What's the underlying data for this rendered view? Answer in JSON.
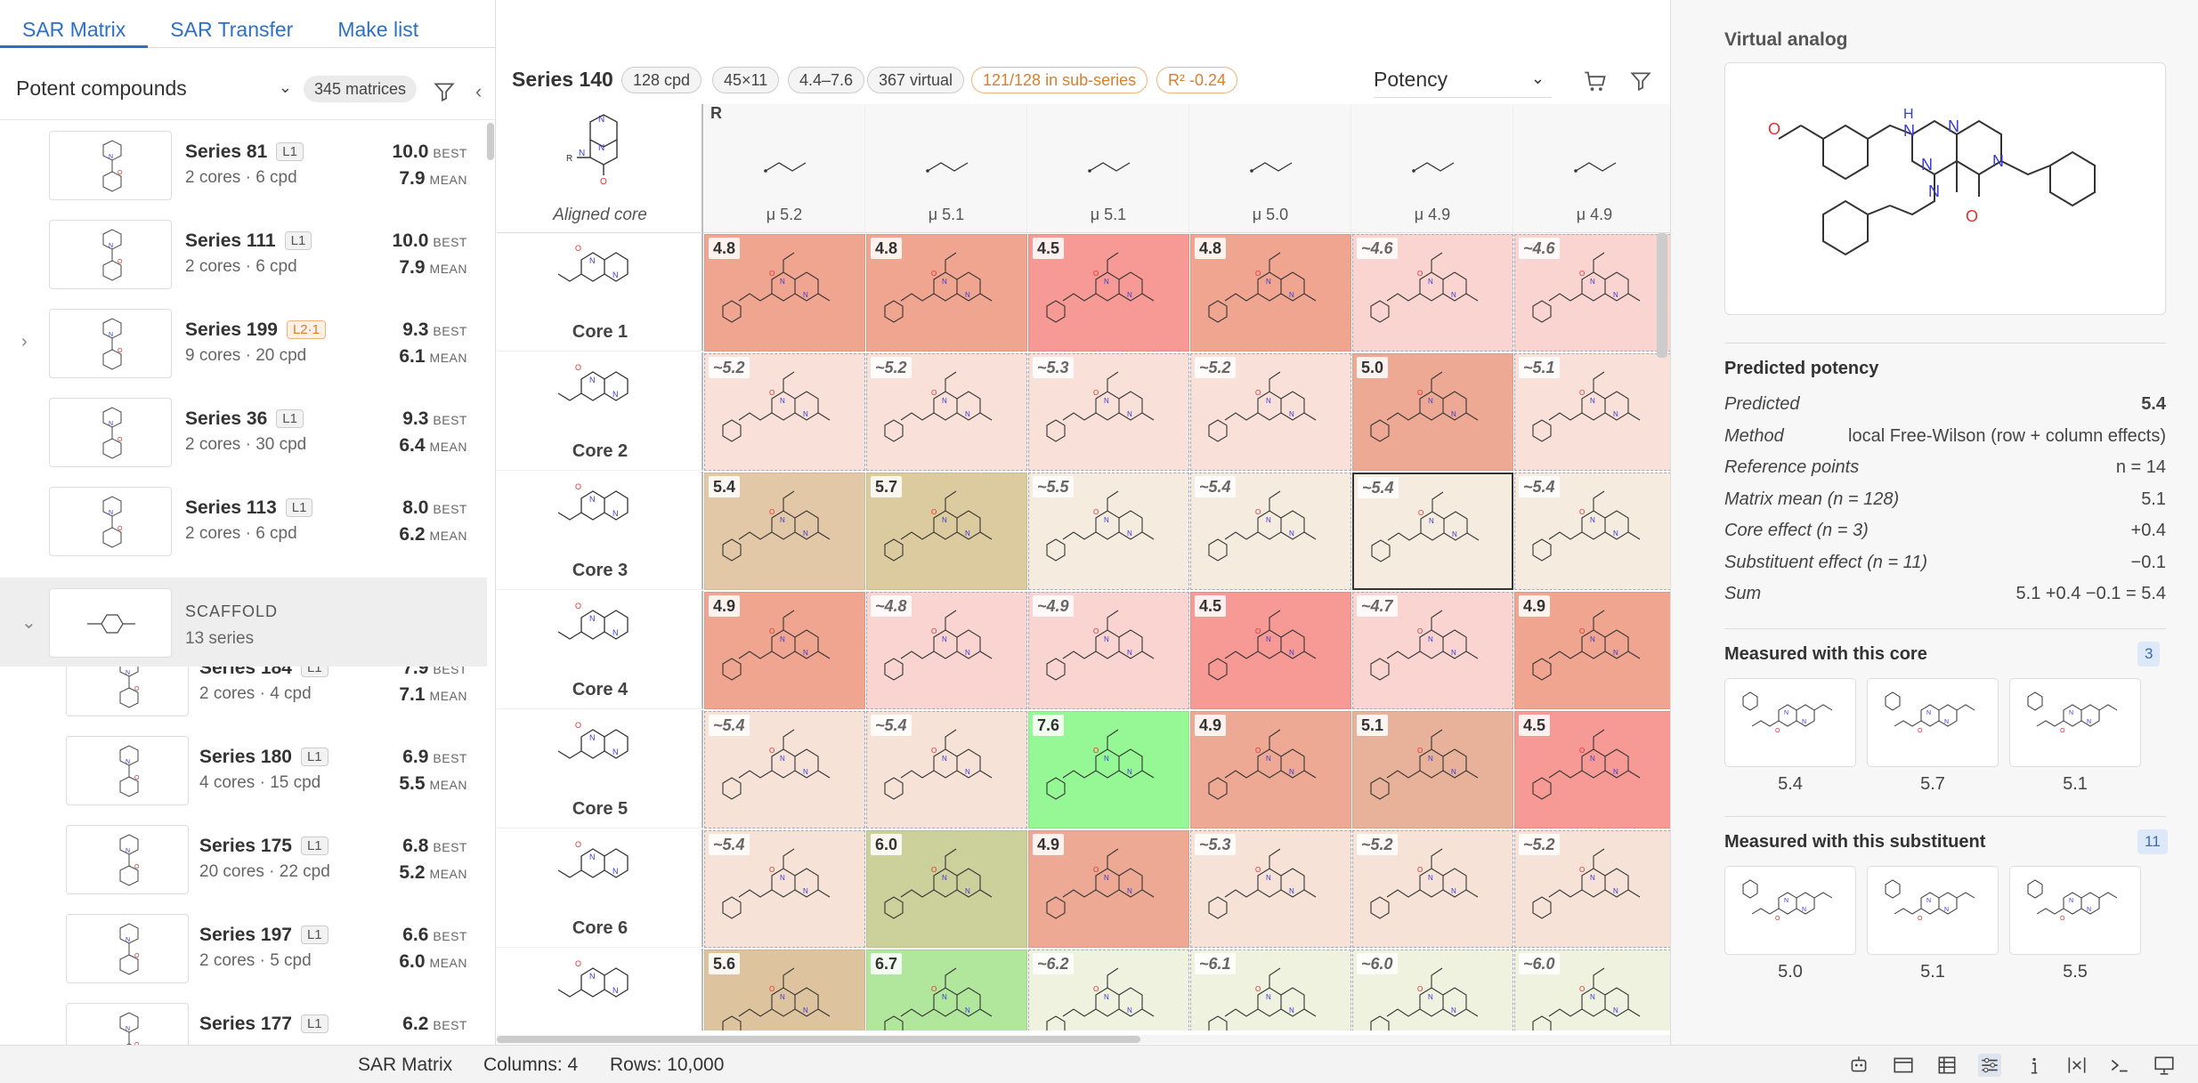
{
  "tabs": [
    {
      "label": "SAR Matrix",
      "active": true
    },
    {
      "label": "SAR Transfer",
      "active": false
    },
    {
      "label": "Make list",
      "active": false
    }
  ],
  "left": {
    "filter_select": "Potent compounds",
    "matrices_badge": "345 matrices",
    "series": [
      {
        "name": "Series 81",
        "level": "L1",
        "sub": "2 cores · 6 cpd",
        "best": "10.0",
        "mean": "7.9"
      },
      {
        "name": "Series 111",
        "level": "L1",
        "sub": "2 cores · 6 cpd",
        "best": "10.0",
        "mean": "7.9"
      },
      {
        "name": "Series 199",
        "level": "L2·1",
        "sub": "9 cores · 20 cpd",
        "best": "9.3",
        "mean": "6.1"
      },
      {
        "name": "Series 36",
        "level": "L1",
        "sub": "2 cores · 30 cpd",
        "best": "9.3",
        "mean": "6.4"
      },
      {
        "name": "Series 113",
        "level": "L1",
        "sub": "2 cores · 6 cpd",
        "best": "8.0",
        "mean": "6.2"
      },
      {
        "name": "Series 184",
        "level": "L1",
        "sub": "2 cores · 4 cpd",
        "best": "7.9",
        "mean": "7.1"
      },
      {
        "name": "Series 180",
        "level": "L1",
        "sub": "4 cores · 15 cpd",
        "best": "6.9",
        "mean": "5.5"
      },
      {
        "name": "Series 175",
        "level": "L1",
        "sub": "20 cores · 22 cpd",
        "best": "6.8",
        "mean": "5.2"
      },
      {
        "name": "Series 197",
        "level": "L1",
        "sub": "2 cores · 5 cpd",
        "best": "6.6",
        "mean": "6.0"
      },
      {
        "name": "Series 177",
        "level": "L1",
        "sub": "",
        "best": "6.2",
        "mean": ""
      }
    ],
    "best_label": "BEST",
    "mean_label": "MEAN",
    "scaffold": {
      "label": "SCAFFOLD",
      "count": "13 series"
    }
  },
  "matrix": {
    "title": "Series 140",
    "chips": [
      "128 cpd",
      "45×11",
      "4.4–7.6",
      "367 virtual"
    ],
    "chips_orange": [
      "121/128 in sub-series",
      "R² -0.24"
    ],
    "metric_select": "Potency",
    "corner_label": "Aligned core",
    "r_label": "R",
    "columns": [
      "μ 5.2",
      "μ 5.1",
      "μ 5.1",
      "μ 5.0",
      "μ 4.9",
      "μ 4.9"
    ],
    "rows": [
      "Core 1",
      "Core 2",
      "Core 3",
      "Core 4",
      "Core 5",
      "Core 6",
      ""
    ],
    "cells": [
      [
        {
          "v": "4.8",
          "m": true,
          "c": "#f0a590"
        },
        {
          "v": "4.8",
          "m": true,
          "c": "#f0a590"
        },
        {
          "v": "4.5",
          "m": true,
          "c": "#f79a95"
        },
        {
          "v": "4.8",
          "m": true,
          "c": "#f0a590"
        },
        {
          "v": "~4.6",
          "m": false,
          "c": "#f9d4d0"
        },
        {
          "v": "~4.6",
          "m": false,
          "c": "#f9d4d0"
        }
      ],
      [
        {
          "v": "~5.2",
          "m": false,
          "c": "#f9e1d9"
        },
        {
          "v": "~5.2",
          "m": false,
          "c": "#f9e1d9"
        },
        {
          "v": "~5.3",
          "m": false,
          "c": "#f9e1d9"
        },
        {
          "v": "~5.2",
          "m": false,
          "c": "#f9e1d9"
        },
        {
          "v": "5.0",
          "m": true,
          "c": "#eda994"
        },
        {
          "v": "~5.1",
          "m": false,
          "c": "#f9e1d9"
        }
      ],
      [
        {
          "v": "5.4",
          "m": true,
          "c": "#e3c8a8"
        },
        {
          "v": "5.7",
          "m": true,
          "c": "#dccb9e"
        },
        {
          "v": "~5.5",
          "m": false,
          "c": "#f6ebdf"
        },
        {
          "v": "~5.4",
          "m": false,
          "c": "#f6ebdf"
        },
        {
          "v": "~5.4",
          "m": false,
          "c": "#f6ebdf",
          "sel": true
        },
        {
          "v": "~5.4",
          "m": false,
          "c": "#f6ebdf"
        }
      ],
      [
        {
          "v": "4.9",
          "m": true,
          "c": "#f0a590"
        },
        {
          "v": "~4.8",
          "m": false,
          "c": "#f9d4d0"
        },
        {
          "v": "~4.9",
          "m": false,
          "c": "#f9d4d0"
        },
        {
          "v": "4.5",
          "m": true,
          "c": "#f79a95"
        },
        {
          "v": "~4.7",
          "m": false,
          "c": "#f9d4d0"
        },
        {
          "v": "4.9",
          "m": true,
          "c": "#f0a590"
        }
      ],
      [
        {
          "v": "~5.4",
          "m": false,
          "c": "#f6e2d6"
        },
        {
          "v": "~5.4",
          "m": false,
          "c": "#f6e2d6"
        },
        {
          "v": "7.6",
          "m": true,
          "c": "#95f895"
        },
        {
          "v": "4.9",
          "m": true,
          "c": "#eda994"
        },
        {
          "v": "5.1",
          "m": true,
          "c": "#e8b29a"
        },
        {
          "v": "4.5",
          "m": true,
          "c": "#f79a95"
        }
      ],
      [
        {
          "v": "~5.4",
          "m": false,
          "c": "#f6e2d6"
        },
        {
          "v": "6.0",
          "m": true,
          "c": "#ccd09a"
        },
        {
          "v": "4.9",
          "m": true,
          "c": "#eda994"
        },
        {
          "v": "~5.3",
          "m": false,
          "c": "#f6e2d6"
        },
        {
          "v": "~5.2",
          "m": false,
          "c": "#f6e2d6"
        },
        {
          "v": "~5.2",
          "m": false,
          "c": "#f6e2d6"
        }
      ],
      [
        {
          "v": "5.6",
          "m": true,
          "c": "#dec49e"
        },
        {
          "v": "6.7",
          "m": true,
          "c": "#b1e79c"
        },
        {
          "v": "~6.2",
          "m": false,
          "c": "#eef2df"
        },
        {
          "v": "~6.1",
          "m": false,
          "c": "#eef2df"
        },
        {
          "v": "~6.0",
          "m": false,
          "c": "#eef2df"
        },
        {
          "v": "~6.0",
          "m": false,
          "c": "#eef2df"
        }
      ]
    ]
  },
  "right": {
    "title": "Virtual analog",
    "predicted_heading": "Predicted potency",
    "kv": [
      {
        "k": "Predicted",
        "v": "5.4",
        "bold": true
      },
      {
        "k": "Method",
        "v": "local Free-Wilson (row + column effects)"
      },
      {
        "k": "Reference points",
        "v": "n = 14"
      },
      {
        "k": "Matrix mean (n = 128)",
        "v": "5.1"
      },
      {
        "k": "Core effect (n = 3)",
        "v": "+0.4"
      },
      {
        "k": "Substituent effect (n = 11)",
        "v": "−0.1"
      },
      {
        "k": "Sum",
        "v": "5.1 +0.4 −0.1 = 5.4"
      }
    ],
    "core_heading": "Measured with this core",
    "core_count": "3",
    "core_values": [
      "5.4",
      "5.7",
      "5.1"
    ],
    "sub_heading": "Measured with this substituent",
    "sub_count": "11",
    "sub_values": [
      "5.0",
      "5.1",
      "5.5"
    ]
  },
  "status": {
    "view": "SAR Matrix",
    "columns": "Columns: 4",
    "rows": "Rows: 10,000"
  },
  "icons": [
    "funnel-icon",
    "cart-icon",
    "chevron-down-icon",
    "chevron-right-icon",
    "chevron-left-icon"
  ]
}
